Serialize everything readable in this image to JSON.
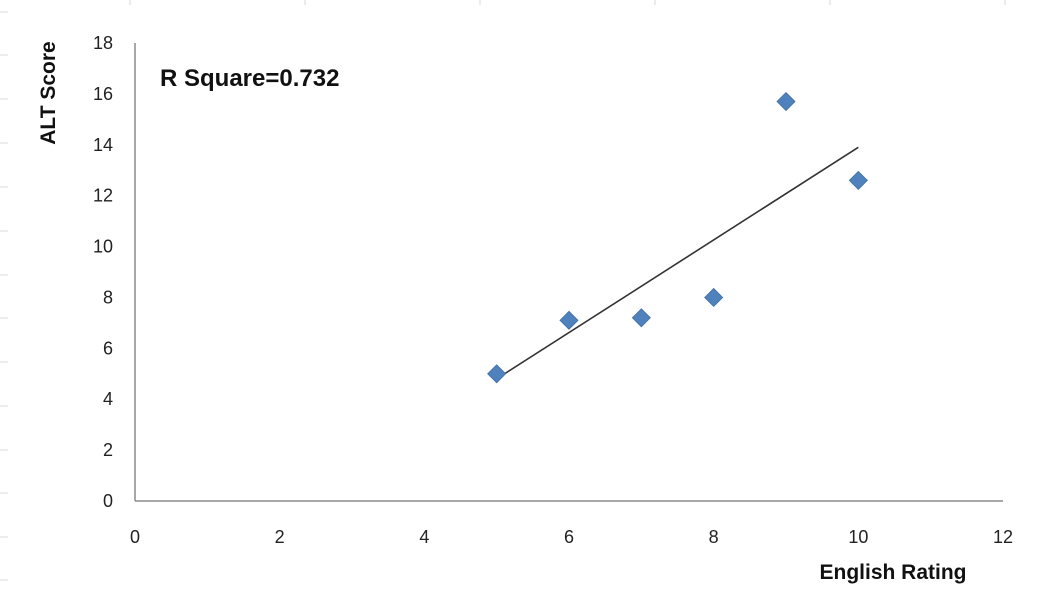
{
  "chart_data": {
    "type": "scatter",
    "xlabel": "English Rating",
    "ylabel": "ALT Score",
    "annotation": "R Square=0.732",
    "xlim": [
      0,
      12
    ],
    "ylim": [
      0,
      18
    ],
    "x_ticks": [
      0,
      2,
      4,
      6,
      8,
      10,
      12
    ],
    "y_ticks": [
      0,
      2,
      4,
      6,
      8,
      10,
      12,
      14,
      16,
      18
    ],
    "grid": false,
    "series": [
      {
        "marker": "diamond",
        "color": "#4F81BD",
        "points": [
          {
            "x": 5,
            "y": 5.0
          },
          {
            "x": 6,
            "y": 7.1
          },
          {
            "x": 7,
            "y": 7.2
          },
          {
            "x": 8,
            "y": 8.0
          },
          {
            "x": 9,
            "y": 15.7
          },
          {
            "x": 10,
            "y": 12.6
          }
        ]
      }
    ],
    "trendline": {
      "color": "#333333",
      "points": [
        {
          "x": 5,
          "y": 4.8
        },
        {
          "x": 10,
          "y": 13.9
        }
      ]
    }
  }
}
